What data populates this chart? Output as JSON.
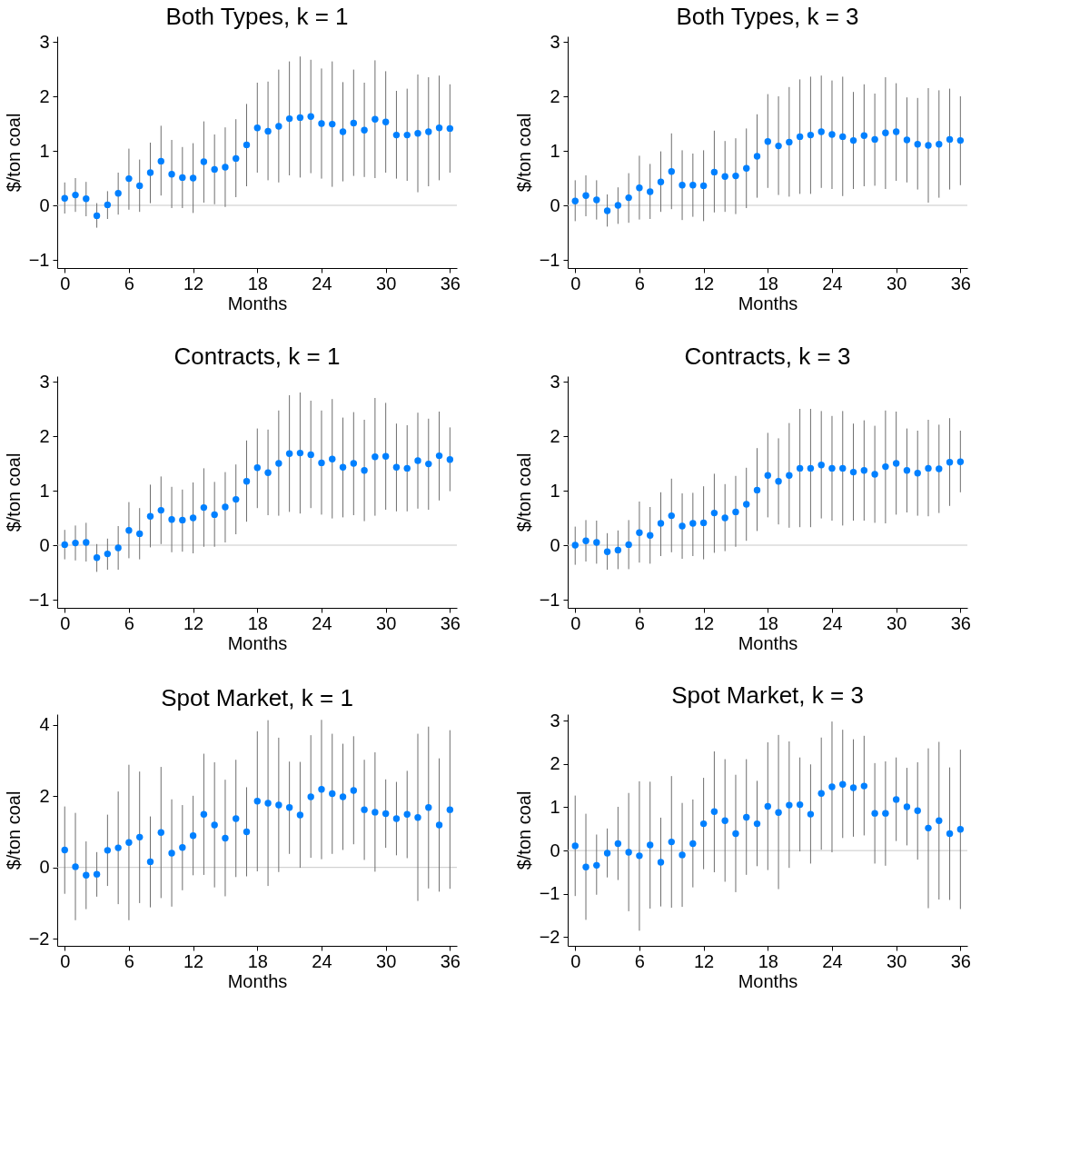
{
  "chart_data": [
    {
      "type": "scatter",
      "title": "Both Types, k = 1",
      "xlabel": "Months",
      "ylabel": "$/ton coal",
      "marker": "circle",
      "color": "#0080ff",
      "grid": false,
      "xlim": [
        -0.7,
        36.65
      ],
      "xticks": [
        0,
        6,
        12,
        18,
        24,
        30,
        36
      ],
      "ylim": [
        -1.15,
        3.1
      ],
      "yticks": [
        -1,
        0,
        1,
        2,
        3
      ],
      "ref_lines": [
        {
          "axis": "y",
          "value": 0,
          "color": "#c8c8c8"
        }
      ],
      "x": [
        0,
        1,
        2,
        3,
        4,
        5,
        6,
        7,
        8,
        9,
        10,
        11,
        12,
        13,
        14,
        15,
        16,
        17,
        18,
        19,
        20,
        21,
        22,
        23,
        24,
        25,
        26,
        27,
        28,
        29,
        30,
        31,
        32,
        33,
        34,
        35,
        36
      ],
      "values": [
        0.13,
        0.19,
        0.12,
        -0.19,
        0.01,
        0.22,
        0.49,
        0.36,
        0.6,
        0.81,
        0.57,
        0.51,
        0.5,
        0.8,
        0.66,
        0.7,
        0.86,
        1.11,
        1.42,
        1.36,
        1.45,
        1.59,
        1.61,
        1.63,
        1.5,
        1.49,
        1.35,
        1.51,
        1.38,
        1.58,
        1.53,
        1.29,
        1.29,
        1.32,
        1.35,
        1.42,
        1.41
      ],
      "errors": [
        [
          -0.15,
          0.42
        ],
        [
          -0.12,
          0.5
        ],
        [
          -0.2,
          0.43
        ],
        [
          -0.41,
          0.04
        ],
        [
          -0.25,
          0.26
        ],
        [
          -0.17,
          0.6
        ],
        [
          -0.08,
          1.04
        ],
        [
          -0.12,
          0.84
        ],
        [
          0.04,
          1.15
        ],
        [
          0.18,
          1.46
        ],
        [
          -0.05,
          1.2
        ],
        [
          -0.05,
          1.07
        ],
        [
          -0.14,
          1.14
        ],
        [
          0.05,
          1.54
        ],
        [
          0.02,
          1.3
        ],
        [
          -0.03,
          1.43
        ],
        [
          0.15,
          1.58
        ],
        [
          0.35,
          1.86
        ],
        [
          0.6,
          2.25
        ],
        [
          0.46,
          2.27
        ],
        [
          0.42,
          2.49
        ],
        [
          0.55,
          2.64
        ],
        [
          0.51,
          2.73
        ],
        [
          0.59,
          2.67
        ],
        [
          0.49,
          2.51
        ],
        [
          0.34,
          2.64
        ],
        [
          0.44,
          2.26
        ],
        [
          0.54,
          2.49
        ],
        [
          0.52,
          2.25
        ],
        [
          0.5,
          2.66
        ],
        [
          0.6,
          2.46
        ],
        [
          0.49,
          2.1
        ],
        [
          0.45,
          2.14
        ],
        [
          0.24,
          2.4
        ],
        [
          0.35,
          2.35
        ],
        [
          0.46,
          2.38
        ],
        [
          0.6,
          2.22
        ]
      ]
    },
    {
      "type": "scatter",
      "title": "Both Types, k = 3",
      "xlabel": "Months",
      "ylabel": "$/ton coal",
      "marker": "circle",
      "color": "#0080ff",
      "grid": false,
      "xlim": [
        -0.7,
        36.65
      ],
      "xticks": [
        0,
        6,
        12,
        18,
        24,
        30,
        36
      ],
      "ylim": [
        -1.15,
        3.1
      ],
      "yticks": [
        -1,
        0,
        1,
        2,
        3
      ],
      "ref_lines": [
        {
          "axis": "y",
          "value": 0,
          "color": "#c8c8c8"
        }
      ],
      "x": [
        0,
        1,
        2,
        3,
        4,
        5,
        6,
        7,
        8,
        9,
        10,
        11,
        12,
        13,
        14,
        15,
        16,
        17,
        18,
        19,
        20,
        21,
        22,
        23,
        24,
        25,
        26,
        27,
        28,
        29,
        30,
        31,
        32,
        33,
        34,
        35,
        36
      ],
      "values": [
        0.08,
        0.18,
        0.1,
        -0.1,
        0.0,
        0.14,
        0.32,
        0.25,
        0.43,
        0.62,
        0.37,
        0.37,
        0.36,
        0.61,
        0.53,
        0.54,
        0.68,
        0.9,
        1.17,
        1.09,
        1.16,
        1.26,
        1.29,
        1.35,
        1.3,
        1.26,
        1.19,
        1.28,
        1.21,
        1.33,
        1.35,
        1.2,
        1.12,
        1.1,
        1.12,
        1.21,
        1.19
      ],
      "errors": [
        [
          -0.29,
          0.46
        ],
        [
          -0.2,
          0.55
        ],
        [
          -0.26,
          0.46
        ],
        [
          -0.39,
          0.2
        ],
        [
          -0.34,
          0.33
        ],
        [
          -0.32,
          0.59
        ],
        [
          -0.26,
          0.91
        ],
        [
          -0.25,
          0.76
        ],
        [
          -0.12,
          0.99
        ],
        [
          -0.07,
          1.32
        ],
        [
          -0.27,
          1.01
        ],
        [
          -0.21,
          0.95
        ],
        [
          -0.29,
          1.01
        ],
        [
          -0.13,
          1.37
        ],
        [
          -0.12,
          1.18
        ],
        [
          -0.16,
          1.23
        ],
        [
          -0.05,
          1.41
        ],
        [
          0.14,
          1.67
        ],
        [
          0.32,
          2.04
        ],
        [
          0.19,
          2.0
        ],
        [
          0.16,
          2.17
        ],
        [
          0.21,
          2.31
        ],
        [
          0.21,
          2.36
        ],
        [
          0.32,
          2.38
        ],
        [
          0.3,
          2.29
        ],
        [
          0.17,
          2.36
        ],
        [
          0.3,
          2.08
        ],
        [
          0.35,
          2.22
        ],
        [
          0.36,
          2.05
        ],
        [
          0.3,
          2.35
        ],
        [
          0.45,
          2.24
        ],
        [
          0.42,
          1.98
        ],
        [
          0.29,
          1.97
        ],
        [
          0.05,
          2.15
        ],
        [
          0.14,
          2.11
        ],
        [
          0.29,
          2.14
        ],
        [
          0.37,
          2.0
        ]
      ]
    },
    {
      "type": "scatter",
      "title": "Contracts, k = 1",
      "xlabel": "Months",
      "ylabel": "$/ton coal",
      "marker": "circle",
      "color": "#0080ff",
      "grid": false,
      "xlim": [
        -0.7,
        36.65
      ],
      "xticks": [
        0,
        6,
        12,
        18,
        24,
        30,
        36
      ],
      "ylim": [
        -1.15,
        3.1
      ],
      "yticks": [
        -1,
        0,
        1,
        2,
        3
      ],
      "ref_lines": [
        {
          "axis": "y",
          "value": 0,
          "color": "#c8c8c8"
        }
      ],
      "x": [
        0,
        1,
        2,
        3,
        4,
        5,
        6,
        7,
        8,
        9,
        10,
        11,
        12,
        13,
        14,
        15,
        16,
        17,
        18,
        19,
        20,
        21,
        22,
        23,
        24,
        25,
        26,
        27,
        28,
        29,
        30,
        31,
        32,
        33,
        34,
        35,
        36
      ],
      "values": [
        0.01,
        0.04,
        0.05,
        -0.23,
        -0.16,
        -0.05,
        0.27,
        0.21,
        0.53,
        0.64,
        0.47,
        0.46,
        0.5,
        0.69,
        0.56,
        0.7,
        0.84,
        1.17,
        1.42,
        1.33,
        1.5,
        1.68,
        1.69,
        1.66,
        1.51,
        1.58,
        1.43,
        1.5,
        1.37,
        1.62,
        1.63,
        1.43,
        1.41,
        1.55,
        1.49,
        1.64,
        1.57
      ],
      "errors": [
        [
          -0.26,
          0.28
        ],
        [
          -0.28,
          0.36
        ],
        [
          -0.3,
          0.41
        ],
        [
          -0.49,
          0.02
        ],
        [
          -0.45,
          0.12
        ],
        [
          -0.45,
          0.35
        ],
        [
          -0.24,
          0.79
        ],
        [
          -0.26,
          0.68
        ],
        [
          -0.04,
          1.11
        ],
        [
          0.02,
          1.26
        ],
        [
          -0.13,
          1.07
        ],
        [
          -0.12,
          1.02
        ],
        [
          -0.15,
          1.15
        ],
        [
          -0.03,
          1.41
        ],
        [
          -0.03,
          1.16
        ],
        [
          0.05,
          1.34
        ],
        [
          0.2,
          1.48
        ],
        [
          0.43,
          1.92
        ],
        [
          0.68,
          2.14
        ],
        [
          0.55,
          2.12
        ],
        [
          0.54,
          2.47
        ],
        [
          0.61,
          2.75
        ],
        [
          0.58,
          2.8
        ],
        [
          0.68,
          2.65
        ],
        [
          0.56,
          2.47
        ],
        [
          0.49,
          2.68
        ],
        [
          0.51,
          2.34
        ],
        [
          0.55,
          2.44
        ],
        [
          0.44,
          2.3
        ],
        [
          0.54,
          2.7
        ],
        [
          0.65,
          2.61
        ],
        [
          0.62,
          2.23
        ],
        [
          0.62,
          2.2
        ],
        [
          0.67,
          2.43
        ],
        [
          0.65,
          2.32
        ],
        [
          0.82,
          2.45
        ],
        [
          0.99,
          2.16
        ]
      ]
    },
    {
      "type": "scatter",
      "title": "Contracts, k = 3",
      "xlabel": "Months",
      "ylabel": "$/ton coal",
      "marker": "circle",
      "color": "#0080ff",
      "grid": false,
      "xlim": [
        -0.7,
        36.65
      ],
      "xticks": [
        0,
        6,
        12,
        18,
        24,
        30,
        36
      ],
      "ylim": [
        -1.15,
        3.1
      ],
      "yticks": [
        -1,
        0,
        1,
        2,
        3
      ],
      "ref_lines": [
        {
          "axis": "y",
          "value": 0,
          "color": "#c8c8c8"
        }
      ],
      "x": [
        0,
        1,
        2,
        3,
        4,
        5,
        6,
        7,
        8,
        9,
        10,
        11,
        12,
        13,
        14,
        15,
        16,
        17,
        18,
        19,
        20,
        21,
        22,
        23,
        24,
        25,
        26,
        27,
        28,
        29,
        30,
        31,
        32,
        33,
        34,
        35,
        36
      ],
      "values": [
        0.0,
        0.08,
        0.05,
        -0.12,
        -0.09,
        0.01,
        0.23,
        0.18,
        0.4,
        0.54,
        0.35,
        0.4,
        0.41,
        0.59,
        0.5,
        0.61,
        0.75,
        1.01,
        1.28,
        1.17,
        1.28,
        1.41,
        1.41,
        1.47,
        1.41,
        1.41,
        1.34,
        1.37,
        1.3,
        1.44,
        1.5,
        1.37,
        1.32,
        1.41,
        1.4,
        1.52,
        1.53
      ],
      "errors": [
        [
          -0.36,
          0.34
        ],
        [
          -0.3,
          0.46
        ],
        [
          -0.34,
          0.45
        ],
        [
          -0.45,
          0.22
        ],
        [
          -0.44,
          0.27
        ],
        [
          -0.44,
          0.46
        ],
        [
          -0.32,
          0.8
        ],
        [
          -0.34,
          0.7
        ],
        [
          -0.2,
          0.97
        ],
        [
          -0.13,
          1.22
        ],
        [
          -0.25,
          0.95
        ],
        [
          -0.2,
          0.96
        ],
        [
          -0.26,
          1.08
        ],
        [
          -0.14,
          1.31
        ],
        [
          -0.11,
          1.12
        ],
        [
          -0.03,
          1.27
        ],
        [
          0.08,
          1.42
        ],
        [
          0.26,
          1.78
        ],
        [
          0.51,
          2.06
        ],
        [
          0.38,
          1.96
        ],
        [
          0.32,
          2.24
        ],
        [
          0.33,
          2.5
        ],
        [
          0.33,
          2.5
        ],
        [
          0.49,
          2.46
        ],
        [
          0.45,
          2.37
        ],
        [
          0.36,
          2.46
        ],
        [
          0.45,
          2.23
        ],
        [
          0.45,
          2.29
        ],
        [
          0.41,
          2.19
        ],
        [
          0.4,
          2.47
        ],
        [
          0.56,
          2.45
        ],
        [
          0.6,
          2.14
        ],
        [
          0.54,
          2.1
        ],
        [
          0.53,
          2.3
        ],
        [
          0.59,
          2.21
        ],
        [
          0.72,
          2.33
        ],
        [
          0.97,
          2.1
        ]
      ]
    },
    {
      "type": "scatter",
      "title": "Spot Market, k = 1",
      "xlabel": "Months",
      "ylabel": "$/ton coal",
      "marker": "circle",
      "color": "#0080ff",
      "grid": false,
      "xlim": [
        -0.7,
        36.65
      ],
      "xticks": [
        0,
        6,
        12,
        18,
        24,
        30,
        36
      ],
      "ylim": [
        -2.2,
        4.3
      ],
      "yticks": [
        -2,
        0,
        2,
        4
      ],
      "ref_lines": [
        {
          "axis": "y",
          "value": 0,
          "color": "#c8c8c8"
        }
      ],
      "x": [
        0,
        1,
        2,
        3,
        4,
        5,
        6,
        7,
        8,
        9,
        10,
        11,
        12,
        13,
        14,
        15,
        16,
        17,
        18,
        19,
        20,
        21,
        22,
        23,
        24,
        25,
        26,
        27,
        28,
        29,
        30,
        31,
        32,
        33,
        34,
        35,
        36
      ],
      "values": [
        0.49,
        0.02,
        -0.22,
        -0.19,
        0.48,
        0.55,
        0.7,
        0.85,
        0.16,
        0.98,
        0.4,
        0.56,
        0.89,
        1.49,
        1.19,
        0.82,
        1.37,
        1.0,
        1.86,
        1.8,
        1.75,
        1.68,
        1.47,
        1.98,
        2.19,
        2.07,
        1.98,
        2.16,
        1.62,
        1.55,
        1.51,
        1.37,
        1.49,
        1.4,
        1.68,
        1.19,
        1.62
      ],
      "errors": [
        [
          -0.74,
          1.71
        ],
        [
          -1.48,
          1.53
        ],
        [
          -1.17,
          0.73
        ],
        [
          -0.82,
          0.43
        ],
        [
          -0.52,
          1.48
        ],
        [
          -1.03,
          2.13
        ],
        [
          -1.48,
          2.88
        ],
        [
          -1.0,
          2.69
        ],
        [
          -1.12,
          1.43
        ],
        [
          -0.86,
          2.82
        ],
        [
          -1.1,
          1.91
        ],
        [
          -0.64,
          1.75
        ],
        [
          -0.22,
          2.01
        ],
        [
          -0.21,
          3.19
        ],
        [
          -0.56,
          2.95
        ],
        [
          -0.81,
          2.46
        ],
        [
          -0.27,
          3.02
        ],
        [
          -0.25,
          2.25
        ],
        [
          -0.11,
          3.82
        ],
        [
          -0.52,
          4.13
        ],
        [
          -0.13,
          3.64
        ],
        [
          0.38,
          2.97
        ],
        [
          -0.01,
          2.96
        ],
        [
          0.27,
          3.71
        ],
        [
          0.23,
          4.14
        ],
        [
          0.38,
          3.75
        ],
        [
          0.49,
          3.47
        ],
        [
          0.65,
          3.68
        ],
        [
          0.21,
          3.02
        ],
        [
          -0.12,
          3.23
        ],
        [
          0.55,
          2.47
        ],
        [
          0.34,
          2.4
        ],
        [
          0.26,
          2.71
        ],
        [
          -0.94,
          3.75
        ],
        [
          -0.59,
          3.95
        ],
        [
          -0.68,
          3.06
        ],
        [
          -0.6,
          3.85
        ]
      ]
    },
    {
      "type": "scatter",
      "title": "Spot Market, k = 3",
      "xlabel": "Months",
      "ylabel": "$/ton coal",
      "marker": "circle",
      "color": "#0080ff",
      "grid": false,
      "xlim": [
        -0.7,
        36.65
      ],
      "xticks": [
        0,
        6,
        12,
        18,
        24,
        30,
        36
      ],
      "ylim": [
        -2.2,
        3.15
      ],
      "yticks": [
        -2,
        -1,
        0,
        1,
        2,
        3
      ],
      "ref_lines": [
        {
          "axis": "y",
          "value": 0,
          "color": "#c8c8c8"
        }
      ],
      "x": [
        0,
        1,
        2,
        3,
        4,
        5,
        6,
        7,
        8,
        9,
        10,
        11,
        12,
        13,
        14,
        15,
        16,
        17,
        18,
        19,
        20,
        21,
        22,
        23,
        24,
        25,
        26,
        27,
        28,
        29,
        30,
        31,
        32,
        33,
        34,
        35,
        36
      ],
      "values": [
        0.11,
        -0.38,
        -0.34,
        -0.06,
        0.16,
        -0.04,
        -0.12,
        0.13,
        -0.27,
        0.2,
        -0.1,
        0.16,
        0.62,
        0.9,
        0.69,
        0.39,
        0.77,
        0.62,
        1.02,
        0.88,
        1.05,
        1.06,
        0.84,
        1.32,
        1.47,
        1.53,
        1.45,
        1.49,
        0.86,
        0.86,
        1.18,
        1.01,
        0.92,
        0.52,
        0.69,
        0.39,
        0.49
      ],
      "errors": [
        [
          -1.05,
          1.27
        ],
        [
          -1.6,
          0.85
        ],
        [
          -1.02,
          0.37
        ],
        [
          -0.62,
          0.51
        ],
        [
          -0.68,
          1.01
        ],
        [
          -1.4,
          1.33
        ],
        [
          -1.85,
          1.6
        ],
        [
          -1.34,
          1.59
        ],
        [
          -1.29,
          0.76
        ],
        [
          -1.32,
          1.72
        ],
        [
          -1.3,
          1.1
        ],
        [
          -0.85,
          1.18
        ],
        [
          -0.43,
          1.68
        ],
        [
          -0.5,
          2.29
        ],
        [
          -0.72,
          2.11
        ],
        [
          -0.96,
          1.75
        ],
        [
          -0.56,
          2.11
        ],
        [
          -0.36,
          1.61
        ],
        [
          -0.45,
          2.5
        ],
        [
          -0.89,
          2.67
        ],
        [
          -0.4,
          2.52
        ],
        [
          -0.02,
          2.15
        ],
        [
          -0.3,
          1.99
        ],
        [
          0.02,
          2.61
        ],
        [
          -0.04,
          2.98
        ],
        [
          0.29,
          2.79
        ],
        [
          0.32,
          2.57
        ],
        [
          0.35,
          2.65
        ],
        [
          -0.3,
          2.02
        ],
        [
          -0.35,
          2.06
        ],
        [
          0.22,
          2.15
        ],
        [
          0.12,
          1.91
        ],
        [
          -0.21,
          2.04
        ],
        [
          -1.33,
          2.36
        ],
        [
          -1.13,
          2.51
        ],
        [
          -1.14,
          1.92
        ],
        [
          -1.35,
          2.33
        ]
      ]
    }
  ]
}
